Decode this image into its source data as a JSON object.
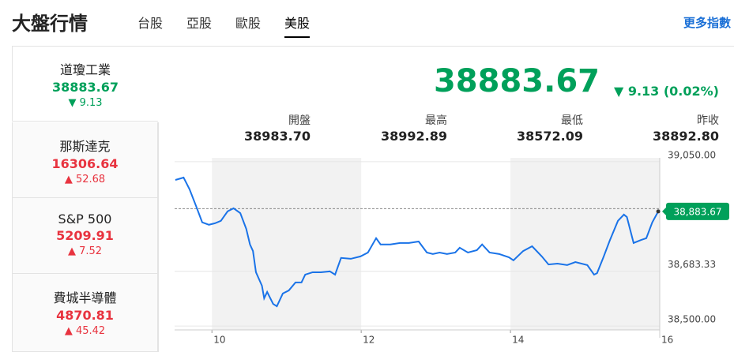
{
  "header": {
    "title": "大盤行情",
    "tabs": [
      "台股",
      "亞股",
      "歐股",
      "美股"
    ],
    "more": "更多指數"
  },
  "sidebar": [
    {
      "name": "道瓊工業",
      "value": "38883.67",
      "change": "9.13"
    },
    {
      "name": "那斯達克",
      "value": "16306.64",
      "change": "52.68"
    },
    {
      "name": "S&P 500",
      "value": "5209.91",
      "change": "7.52"
    },
    {
      "name": "費城半導體",
      "value": "4870.81",
      "change": "45.42"
    }
  ],
  "quote": {
    "price": "38883.67",
    "change": "9.13 (0.02%)",
    "stats": [
      {
        "label": "開盤",
        "value": "38983.70"
      },
      {
        "label": "最高",
        "value": "38992.89"
      },
      {
        "label": "最低",
        "value": "38572.09"
      },
      {
        "label": "昨收",
        "value": "38892.80"
      }
    ]
  },
  "chart_data": {
    "type": "line",
    "color": "#1a73e8",
    "x": [
      9.51,
      9.62,
      9.7,
      9.79,
      9.87,
      9.96,
      10.04,
      10.12,
      10.21,
      10.29,
      10.38,
      10.46,
      10.51,
      10.55,
      10.59,
      10.67,
      10.7,
      10.74,
      10.82,
      10.87,
      10.95,
      11.03,
      11.12,
      11.2,
      11.25,
      11.35,
      11.46,
      11.58,
      11.65,
      11.73,
      11.86,
      11.99,
      12.09,
      12.2,
      12.26,
      12.39,
      12.52,
      12.64,
      12.77,
      12.88,
      12.96,
      13.05,
      13.15,
      13.26,
      13.32,
      13.43,
      13.55,
      13.62,
      13.72,
      13.85,
      13.98,
      14.04,
      14.17,
      14.29,
      14.42,
      14.51,
      14.63,
      14.76,
      14.87,
      15.03,
      15.12,
      15.16,
      15.25,
      15.33,
      15.44,
      15.52,
      15.56,
      15.65,
      15.75,
      15.82,
      15.9,
      15.98
    ],
    "values": [
      38989,
      38997,
      38958,
      38900,
      38847,
      38839,
      38844,
      38852,
      38884,
      38894,
      38878,
      38825,
      38773,
      38751,
      38680,
      38635,
      38593,
      38614,
      38574,
      38566,
      38609,
      38619,
      38646,
      38646,
      38672,
      38680,
      38680,
      38683,
      38672,
      38728,
      38725,
      38733,
      38746,
      38794,
      38773,
      38773,
      38778,
      38778,
      38783,
      38746,
      38741,
      38746,
      38741,
      38746,
      38762,
      38746,
      38754,
      38773,
      38746,
      38741,
      38730,
      38720,
      38751,
      38767,
      38733,
      38706,
      38709,
      38704,
      38714,
      38704,
      38672,
      38677,
      38733,
      38786,
      38852,
      38873,
      38865,
      38778,
      38788,
      38794,
      38847,
      38883.67
    ],
    "last_label": "38,883.67",
    "reference_value": 38892.8,
    "xlim": [
      9.5,
      16
    ],
    "xticks": [
      10,
      12,
      14,
      16
    ],
    "ylim": [
      38487,
      39063
    ],
    "yticks": [
      {
        "value": 38500,
        "label": "38,500.00"
      },
      {
        "value": 38683.33,
        "label": "38,683.33"
      },
      {
        "value": 39050,
        "label": "39,050.00"
      }
    ],
    "grid": true
  }
}
